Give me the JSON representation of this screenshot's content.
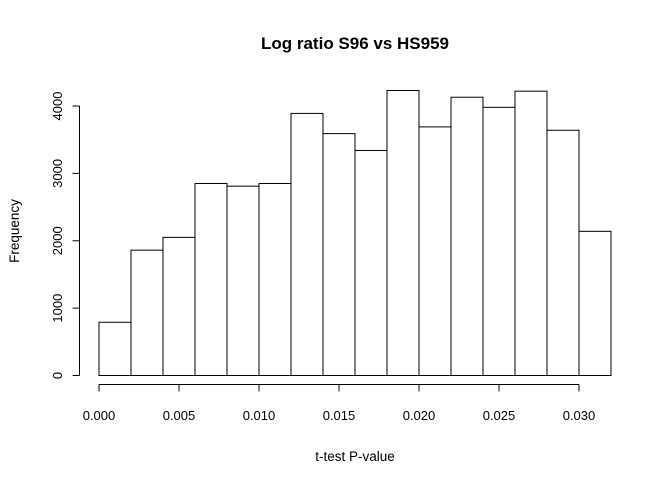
{
  "chart_data": {
    "type": "bar",
    "title": "Log ratio S96 vs HS959",
    "xlabel": "t-test P-value",
    "ylabel": "Frequency",
    "bin_edges": [
      0.0,
      0.002,
      0.004,
      0.006,
      0.008,
      0.01,
      0.012,
      0.014,
      0.016,
      0.018,
      0.02,
      0.022,
      0.024,
      0.026,
      0.028,
      0.03,
      0.032
    ],
    "values": [
      790,
      1860,
      2050,
      2850,
      2810,
      2850,
      3890,
      3590,
      3340,
      4230,
      3690,
      4130,
      3980,
      4220,
      3640,
      2140
    ],
    "xlim": [
      0.0,
      0.032
    ],
    "ylim": [
      0,
      4000
    ],
    "x_ticks": [
      0.0,
      0.005,
      0.01,
      0.015,
      0.02,
      0.025,
      0.03
    ],
    "x_tick_labels": [
      "0.000",
      "0.005",
      "0.010",
      "0.015",
      "0.020",
      "0.025",
      "0.030"
    ],
    "y_ticks": [
      0,
      1000,
      2000,
      3000,
      4000
    ],
    "y_tick_labels": [
      "0",
      "1000",
      "2000",
      "3000",
      "4000"
    ],
    "grid": false,
    "bar_fill": "#ffffff",
    "bar_stroke": "#000000"
  }
}
